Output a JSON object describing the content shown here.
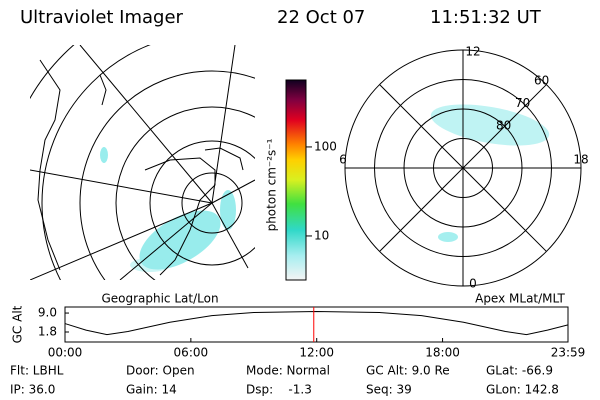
{
  "header": {
    "instrument": "Ultraviolet Imager",
    "date": "22 Oct 07",
    "time": "11:51:32 UT"
  },
  "geo_map": {
    "label": "Geographic Lat/Lon"
  },
  "colorbar": {
    "label": "photon cm⁻²s⁻¹",
    "log": true,
    "lim": [
      3.2,
      565
    ],
    "ticks": [
      100,
      10
    ]
  },
  "polar_map": {
    "label": "Apex MLat/MLT",
    "mlt_labels": [
      12,
      18,
      6,
      0
    ],
    "mlat_labels": [
      80,
      70,
      60
    ]
  },
  "chart_data": {
    "type": "line",
    "y_label": "GC Alt",
    "x": [
      0,
      1,
      2,
      3,
      5,
      7,
      9,
      12,
      15,
      17,
      19,
      21,
      22,
      23,
      23.98
    ],
    "series": [
      {
        "color": "#000000",
        "values": [
          5.0,
          2.5,
          0.8,
          2.0,
          5.5,
          8.0,
          9.2,
          9.6,
          9.2,
          8.0,
          5.5,
          2.0,
          0.8,
          2.5,
          4.5
        ]
      }
    ],
    "xlim": [
      0,
      23.98
    ],
    "xticks": [
      {
        "value": 0,
        "label": "00:00"
      },
      {
        "value": 6,
        "label": "06:00"
      },
      {
        "value": 12,
        "label": "12:00"
      },
      {
        "value": 18,
        "label": "18:00"
      },
      {
        "value": 23.98,
        "label": "23:59"
      }
    ],
    "ylim": [
      -2,
      11.3
    ],
    "yticks": [
      {
        "value": 9,
        "label": "9.0"
      },
      1.8
    ],
    "marker_x": 11.86,
    "marker_color": "#ff0000"
  },
  "status": [
    [
      "Flt: LBHL",
      "IP: 36.0"
    ],
    [
      "Door: Open",
      "Gain: 14"
    ],
    [
      "Mode: Normal",
      "Dsp:    -1.3"
    ],
    [
      "GC Alt: 9.0 Re",
      "Seq: 39"
    ],
    [
      "GLat: -66.9",
      "GLon: 142.8"
    ]
  ]
}
